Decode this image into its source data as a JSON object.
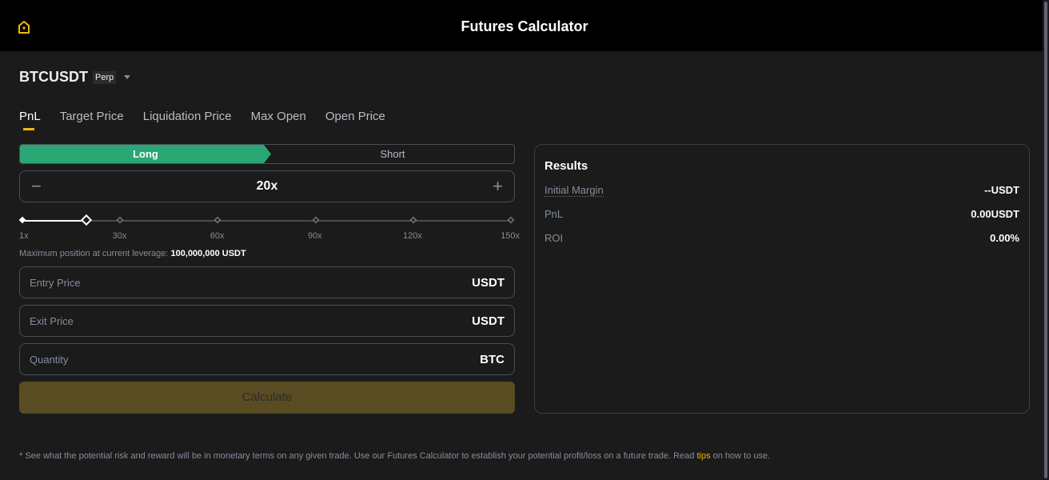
{
  "header": {
    "title": "Futures Calculator",
    "home_icon": "home-icon"
  },
  "symbol": {
    "name": "BTCUSDT",
    "badge": "Perp"
  },
  "tabs": [
    {
      "label": "PnL",
      "active": true
    },
    {
      "label": "Target Price"
    },
    {
      "label": "Liquidation Price"
    },
    {
      "label": "Max Open"
    },
    {
      "label": "Open Price"
    }
  ],
  "side": {
    "long": "Long",
    "short": "Short",
    "selected": "Long"
  },
  "leverage": {
    "value": "20x",
    "current": 20,
    "min": 1,
    "max": 150,
    "ticks": [
      "1x",
      "30x",
      "60x",
      "90x",
      "120x",
      "150x"
    ]
  },
  "max_position": {
    "label": "Maximum position at current leverage:",
    "value": "100,000,000 USDT"
  },
  "fields": [
    {
      "placeholder": "Entry Price",
      "unit": "USDT"
    },
    {
      "placeholder": "Exit Price",
      "unit": "USDT"
    },
    {
      "placeholder": "Quantity",
      "unit": "BTC"
    }
  ],
  "calculate_label": "Calculate",
  "results": {
    "title": "Results",
    "rows": [
      {
        "label": "Initial Margin",
        "value": "--USDT"
      },
      {
        "label": "PnL",
        "value": "0.00USDT"
      },
      {
        "label": "ROI",
        "value": "0.00%"
      }
    ]
  },
  "footer": {
    "text": "* See what the potential risk and reward will be in monetary terms on any given trade. Use our Futures Calculator to establish your potential profit/loss on a future trade. Read",
    "link": "tips",
    "suffix": "on how to use."
  },
  "colors": {
    "accent": "#f0b90b",
    "long": "#2aa774",
    "calculate": "#5a4c22"
  }
}
